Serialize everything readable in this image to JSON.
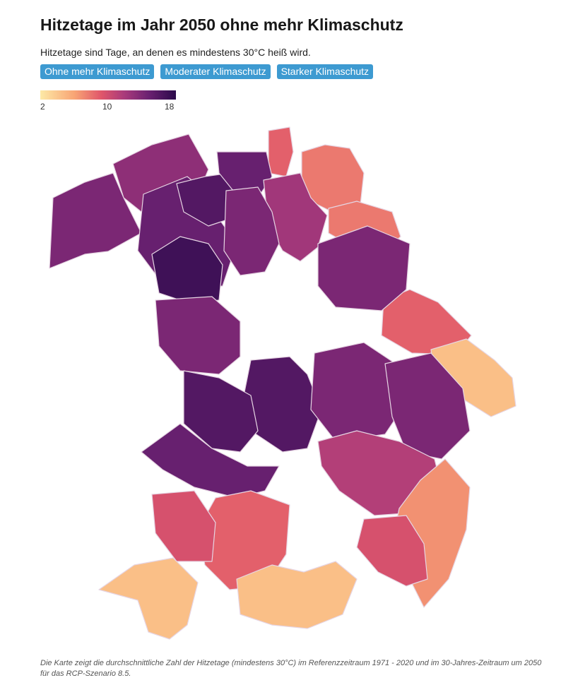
{
  "header": {
    "title": "Hitzetage im Jahr 2050 ohne mehr Klimaschutz",
    "subtitle": "Hitzetage sind Tage, an denen es mindestens 30°C heiß wird."
  },
  "scenario_buttons": [
    {
      "label": "Ohne mehr Klimaschutz"
    },
    {
      "label": "Moderater Klimaschutz"
    },
    {
      "label": "Starker Klimaschutz"
    }
  ],
  "legend": {
    "ticks": [
      "2",
      "10",
      "18"
    ],
    "min": 2,
    "max": 18
  },
  "colors": {
    "scale": [
      "#fde9a6",
      "#f8a575",
      "#e0566a",
      "#a93a7b",
      "#6b2171",
      "#2b0a4b"
    ],
    "button": "#3d9ad1",
    "border": "#e6d5e3"
  },
  "map": {
    "regions": [
      {
        "heat_days": 13
      },
      {
        "heat_days": 14
      },
      {
        "heat_days": 15
      },
      {
        "heat_days": 16
      },
      {
        "heat_days": 17
      },
      {
        "heat_days": 8
      },
      {
        "heat_days": 7
      },
      {
        "heat_days": 7
      },
      {
        "heat_days": 15
      },
      {
        "heat_days": 12
      },
      {
        "heat_days": 14
      },
      {
        "heat_days": 8
      },
      {
        "heat_days": 4
      },
      {
        "heat_days": 14
      },
      {
        "heat_days": 16
      },
      {
        "heat_days": 14
      },
      {
        "heat_days": 16
      },
      {
        "heat_days": 14
      },
      {
        "heat_days": 14
      },
      {
        "heat_days": 15
      },
      {
        "heat_days": 11
      },
      {
        "heat_days": 6
      },
      {
        "heat_days": 9
      },
      {
        "heat_days": 8
      },
      {
        "heat_days": 9
      },
      {
        "heat_days": 4
      },
      {
        "heat_days": 4
      }
    ]
  },
  "footnote": "Die Karte zeigt die durchschnittliche Zahl der Hitzetage (mindestens 30°C) im Referenzzeitraum 1971 - 2020 und im 30-Jahres-Zeitraum um 2050 für das RCP-Szenario 8.5."
}
